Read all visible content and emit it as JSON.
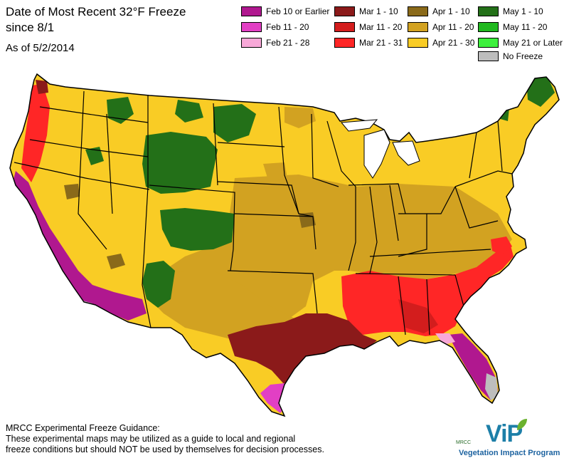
{
  "title": {
    "line1": "Date of Most Recent 32°F Freeze",
    "line2": "since 8/1",
    "as_of": "As of 5/2/2014"
  },
  "legend": [
    {
      "label": "Feb 10 or Earlier",
      "color": "#b0188f"
    },
    {
      "label": "Feb 11 - 20",
      "color": "#e23fc4"
    },
    {
      "label": "Feb 21 - 28",
      "color": "#f8a8d8"
    },
    {
      "label": "Mar 1 - 10",
      "color": "#8b1a1a"
    },
    {
      "label": "Mar 11 - 20",
      "color": "#d31d1d"
    },
    {
      "label": "Mar 21 - 31",
      "color": "#ff2626"
    },
    {
      "label": "Apr 1 - 10",
      "color": "#8a6a1a"
    },
    {
      "label": "Apr 11 - 20",
      "color": "#d2a221"
    },
    {
      "label": "Apr 21 - 30",
      "color": "#f9cc25"
    },
    {
      "label": "May 1 - 10",
      "color": "#237018"
    },
    {
      "label": "May 11 - 20",
      "color": "#20b81f"
    },
    {
      "label": "May 21 or Later",
      "color": "#3cf03c"
    },
    {
      "label": "No Freeze",
      "color": "#bdbdbd"
    }
  ],
  "guidance": {
    "heading": "MRCC Experimental Freeze Guidance:",
    "line1": "These experimental maps may be utilized as a guide to local and regional",
    "line2": "freeze conditions but should NOT be used by themselves for decision processes."
  },
  "logo": {
    "org": "MRCC",
    "name": "ViP",
    "subtitle": "Vegetation Impact Program"
  }
}
